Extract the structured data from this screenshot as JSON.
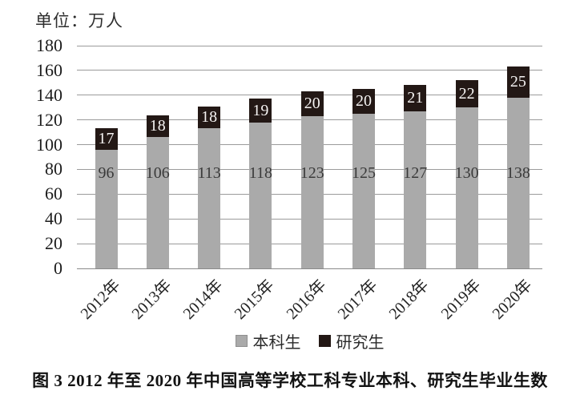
{
  "unit_label": "单位：万人",
  "caption": "图 3  2012 年至 2020 年中国高等学校工科专业本科、研究生毕业生数",
  "legend": {
    "items": [
      {
        "label": "本科生",
        "color": "#aaaaaa"
      },
      {
        "label": "研究生",
        "color": "#231815"
      }
    ]
  },
  "colors": {
    "undergrad_bar": "#aaaaaa",
    "grad_bar": "#231815",
    "gridline": "#9b9b9b"
  },
  "chart_data": {
    "type": "bar",
    "stacked": true,
    "title": "图 3 2012 年至 2020 年中国高等学校工科专业本科、研究生毕业生数",
    "unit": "单位：万人",
    "categories": [
      "2012年",
      "2013年",
      "2014年",
      "2015年",
      "2016年",
      "2017年",
      "2018年",
      "2019年",
      "2020年"
    ],
    "series": [
      {
        "name": "本科生",
        "color": "#aaaaaa",
        "values": [
          96,
          106,
          113,
          118,
          123,
          125,
          127,
          130,
          138
        ]
      },
      {
        "name": "研究生",
        "color": "#231815",
        "values": [
          17,
          18,
          18,
          19,
          20,
          20,
          21,
          22,
          25
        ]
      }
    ],
    "ylim": [
      0,
      180
    ],
    "ytick_step": 20,
    "yticks": [
      0,
      20,
      40,
      60,
      80,
      100,
      120,
      140,
      160,
      180
    ],
    "grid": true,
    "legend_position": "bottom",
    "xlabel": "",
    "ylabel": ""
  }
}
